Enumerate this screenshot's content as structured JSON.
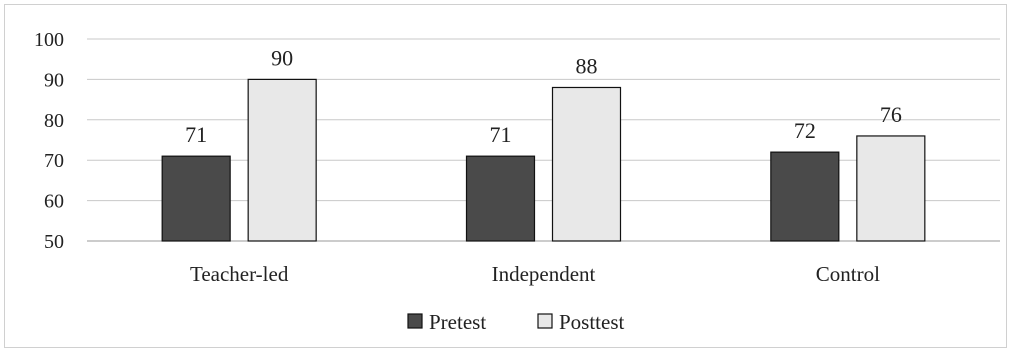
{
  "chart_data": {
    "type": "bar",
    "categories": [
      "Teacher-led",
      "Independent",
      "Control"
    ],
    "series": [
      {
        "name": "Pretest",
        "values": [
          71,
          71,
          72
        ],
        "color": "#4a4a4a"
      },
      {
        "name": "Posttest",
        "values": [
          90,
          88,
          76
        ],
        "color": "#e8e8e8"
      }
    ],
    "ylim": [
      50,
      100
    ],
    "yticks": [
      50,
      60,
      70,
      80,
      90,
      100
    ],
    "grid": true,
    "legend_position": "bottom",
    "data_labels": true
  }
}
